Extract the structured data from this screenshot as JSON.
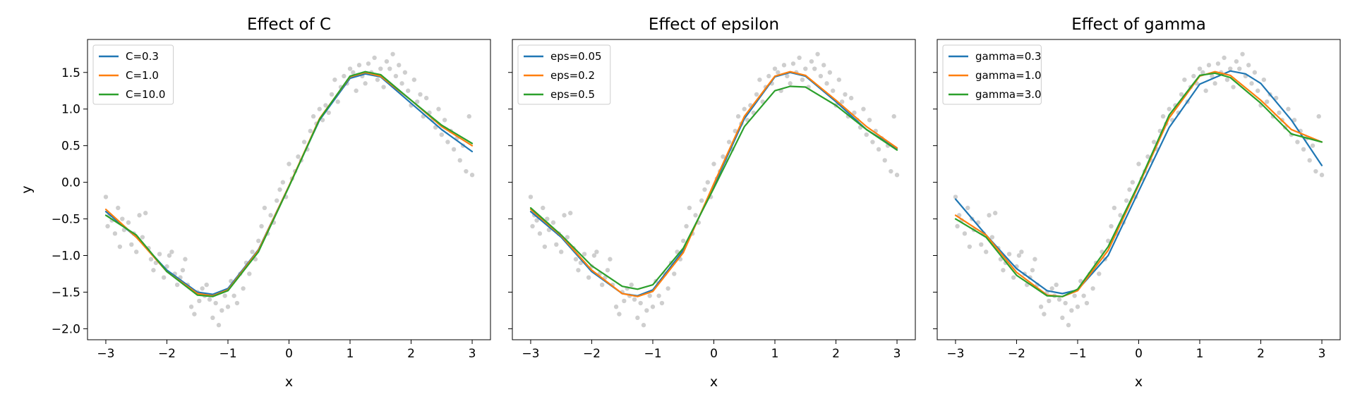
{
  "chart_data": [
    {
      "type": "scatter+line",
      "title": "Effect of C",
      "xlabel": "x",
      "ylabel": "y",
      "xlim": [
        -3.3,
        3.3
      ],
      "ylim": [
        -2.15,
        1.95
      ],
      "xticks": [
        -3,
        -2,
        -1,
        0,
        1,
        2,
        3
      ],
      "xtick_labels": [
        "−3",
        "−2",
        "−1",
        "0",
        "1",
        "2",
        "3"
      ],
      "yticks": [
        -2.0,
        -1.5,
        -1.0,
        -0.5,
        0.0,
        0.5,
        1.0,
        1.5
      ],
      "ytick_labels": [
        "−2.0",
        "−1.5",
        "−1.0",
        "−0.5",
        "0.0",
        "0.5",
        "1.0",
        "1.5"
      ],
      "legend_position": "upper-left",
      "series": [
        {
          "name": "C=0.3",
          "color": "#1f77b4",
          "x": [
            -3.0,
            -2.5,
            -2.0,
            -1.5,
            -1.25,
            -1.0,
            -0.5,
            0.0,
            0.5,
            1.0,
            1.25,
            1.5,
            2.0,
            2.5,
            3.0
          ],
          "y": [
            -0.4,
            -0.75,
            -1.2,
            -1.5,
            -1.53,
            -1.45,
            -0.92,
            -0.05,
            0.85,
            1.42,
            1.48,
            1.44,
            1.08,
            0.72,
            0.42
          ]
        },
        {
          "name": "C=1.0",
          "color": "#ff7f0e",
          "x": [
            -3.0,
            -2.5,
            -2.0,
            -1.5,
            -1.25,
            -1.0,
            -0.5,
            0.0,
            0.5,
            1.0,
            1.25,
            1.5,
            2.0,
            2.5,
            3.0
          ],
          "y": [
            -0.37,
            -0.75,
            -1.22,
            -1.52,
            -1.55,
            -1.47,
            -0.93,
            -0.05,
            0.87,
            1.44,
            1.5,
            1.45,
            1.12,
            0.76,
            0.5
          ]
        },
        {
          "name": "C=10.0",
          "color": "#2ca02c",
          "x": [
            -3.0,
            -2.5,
            -2.0,
            -1.5,
            -1.25,
            -1.0,
            -0.5,
            0.0,
            0.5,
            1.0,
            1.25,
            1.5,
            2.0,
            2.5,
            3.0
          ],
          "y": [
            -0.45,
            -0.72,
            -1.22,
            -1.54,
            -1.56,
            -1.48,
            -0.95,
            -0.06,
            0.86,
            1.45,
            1.51,
            1.47,
            1.12,
            0.78,
            0.53
          ]
        }
      ]
    },
    {
      "type": "scatter+line",
      "title": "Effect of epsilon",
      "xlabel": "x",
      "ylabel": "",
      "xlim": [
        -3.3,
        3.3
      ],
      "ylim": [
        -2.15,
        1.95
      ],
      "xticks": [
        -3,
        -2,
        -1,
        0,
        1,
        2,
        3
      ],
      "xtick_labels": [
        "−3",
        "−2",
        "−1",
        "0",
        "1",
        "2",
        "3"
      ],
      "legend_position": "upper-left",
      "series": [
        {
          "name": "eps=0.05",
          "color": "#1f77b4",
          "x": [
            -3.0,
            -2.5,
            -2.0,
            -1.5,
            -1.25,
            -1.0,
            -0.5,
            0.0,
            0.5,
            1.0,
            1.25,
            1.5,
            2.0,
            2.5,
            3.0
          ],
          "y": [
            -0.4,
            -0.75,
            -1.22,
            -1.52,
            -1.55,
            -1.47,
            -0.93,
            -0.05,
            0.87,
            1.44,
            1.5,
            1.45,
            1.1,
            0.72,
            0.46
          ]
        },
        {
          "name": "eps=0.2",
          "color": "#ff7f0e",
          "x": [
            -3.0,
            -2.5,
            -2.0,
            -1.5,
            -1.25,
            -1.0,
            -0.5,
            0.0,
            0.5,
            1.0,
            1.25,
            1.5,
            2.0,
            2.5,
            3.0
          ],
          "y": [
            -0.37,
            -0.73,
            -1.2,
            -1.52,
            -1.56,
            -1.49,
            -0.96,
            -0.02,
            0.9,
            1.45,
            1.51,
            1.46,
            1.12,
            0.76,
            0.47
          ]
        },
        {
          "name": "eps=0.5",
          "color": "#2ca02c",
          "x": [
            -3.0,
            -2.5,
            -2.0,
            -1.5,
            -1.25,
            -1.0,
            -0.5,
            0.0,
            0.5,
            1.0,
            1.25,
            1.5,
            2.0,
            2.5,
            3.0
          ],
          "y": [
            -0.35,
            -0.72,
            -1.14,
            -1.42,
            -1.46,
            -1.4,
            -0.9,
            -0.08,
            0.76,
            1.25,
            1.31,
            1.3,
            1.05,
            0.72,
            0.44
          ]
        }
      ]
    },
    {
      "type": "scatter+line",
      "title": "Effect of gamma",
      "xlabel": "x",
      "ylabel": "",
      "xlim": [
        -3.3,
        3.3
      ],
      "ylim": [
        -2.15,
        1.95
      ],
      "xticks": [
        -3,
        -2,
        -1,
        0,
        1,
        2,
        3
      ],
      "xtick_labels": [
        "−3",
        "−2",
        "−1",
        "0",
        "1",
        "2",
        "3"
      ],
      "legend_position": "upper-left",
      "series": [
        {
          "name": "gamma=0.3",
          "color": "#1f77b4",
          "x": [
            -3.0,
            -2.5,
            -2.0,
            -1.5,
            -1.25,
            -1.0,
            -0.5,
            0.0,
            0.5,
            1.0,
            1.5,
            1.75,
            2.0,
            2.5,
            3.0
          ],
          "y": [
            -0.23,
            -0.72,
            -1.18,
            -1.48,
            -1.52,
            -1.47,
            -1.0,
            -0.12,
            0.75,
            1.34,
            1.52,
            1.48,
            1.35,
            0.85,
            0.23
          ]
        },
        {
          "name": "gamma=1.0",
          "color": "#ff7f0e",
          "x": [
            -3.0,
            -2.5,
            -2.0,
            -1.5,
            -1.25,
            -1.0,
            -0.5,
            0.0,
            0.5,
            1.0,
            1.25,
            1.5,
            2.0,
            2.5,
            3.0
          ],
          "y": [
            -0.45,
            -0.72,
            -1.23,
            -1.54,
            -1.56,
            -1.48,
            -0.93,
            -0.04,
            0.88,
            1.45,
            1.51,
            1.46,
            1.12,
            0.72,
            0.55
          ]
        },
        {
          "name": "gamma=3.0",
          "color": "#2ca02c",
          "x": [
            -3.0,
            -2.5,
            -2.0,
            -1.5,
            -1.25,
            -1.0,
            -0.5,
            0.0,
            0.5,
            1.0,
            1.25,
            1.5,
            2.0,
            2.5,
            3.0
          ],
          "y": [
            -0.5,
            -0.75,
            -1.27,
            -1.55,
            -1.56,
            -1.46,
            -0.88,
            -0.02,
            0.92,
            1.46,
            1.49,
            1.43,
            1.08,
            0.66,
            0.55
          ]
        }
      ]
    }
  ],
  "scatter": {
    "color": "#7f7f7f",
    "x": [
      -3.0,
      -2.97,
      -2.94,
      -2.9,
      -2.85,
      -2.8,
      -2.77,
      -2.73,
      -2.7,
      -2.63,
      -2.58,
      -2.54,
      -2.5,
      -2.45,
      -2.4,
      -2.35,
      -2.3,
      -2.26,
      -2.22,
      -2.18,
      -2.12,
      -2.05,
      -2.0,
      -1.96,
      -1.92,
      -1.87,
      -1.83,
      -1.78,
      -1.74,
      -1.7,
      -1.66,
      -1.6,
      -1.55,
      -1.5,
      -1.47,
      -1.42,
      -1.38,
      -1.35,
      -1.3,
      -1.25,
      -1.2,
      -1.15,
      -1.1,
      -1.05,
      -1.0,
      -0.95,
      -0.9,
      -0.85,
      -0.8,
      -0.75,
      -0.7,
      -0.65,
      -0.6,
      -0.55,
      -0.5,
      -0.45,
      -0.4,
      -0.35,
      -0.3,
      -0.25,
      -0.2,
      -0.15,
      -0.1,
      -0.05,
      0.0,
      0.05,
      0.1,
      0.15,
      0.2,
      0.25,
      0.3,
      0.35,
      0.4,
      0.45,
      0.5,
      0.55,
      0.6,
      0.65,
      0.7,
      0.75,
      0.8,
      0.85,
      0.9,
      0.95,
      1.0,
      1.05,
      1.1,
      1.15,
      1.2,
      1.25,
      1.3,
      1.35,
      1.4,
      1.45,
      1.5,
      1.55,
      1.6,
      1.65,
      1.7,
      1.75,
      1.8,
      1.85,
      1.9,
      1.95,
      2.0,
      2.05,
      2.1,
      2.15,
      2.2,
      2.25,
      2.3,
      2.35,
      2.4,
      2.45,
      2.5,
      2.55,
      2.6,
      2.65,
      2.7,
      2.75,
      2.8,
      2.85,
      2.9,
      2.95,
      3.0
    ],
    "y": [
      -0.2,
      -0.6,
      -0.45,
      -0.52,
      -0.7,
      -0.35,
      -0.88,
      -0.5,
      -0.65,
      -0.55,
      -0.85,
      -0.7,
      -0.95,
      -0.45,
      -0.75,
      -0.42,
      -0.9,
      -1.05,
      -1.2,
      -1.1,
      -0.98,
      -1.3,
      -1.15,
      -1.0,
      -0.95,
      -1.25,
      -1.4,
      -1.3,
      -1.2,
      -1.05,
      -1.4,
      -1.7,
      -1.8,
      -1.5,
      -1.62,
      -1.45,
      -1.55,
      -1.4,
      -1.6,
      -1.85,
      -1.65,
      -1.95,
      -1.75,
      -1.55,
      -1.7,
      -1.35,
      -1.55,
      -1.65,
      -1.25,
      -1.45,
      -1.1,
      -1.25,
      -0.95,
      -1.05,
      -0.8,
      -0.6,
      -0.35,
      -0.7,
      -0.45,
      -0.55,
      -0.25,
      -0.1,
      0.0,
      -0.2,
      0.25,
      0.05,
      0.15,
      0.35,
      0.3,
      0.55,
      0.45,
      0.7,
      0.9,
      0.8,
      1.0,
      0.85,
      1.05,
      0.95,
      1.2,
      1.4,
      1.1,
      1.3,
      1.45,
      1.35,
      1.55,
      1.5,
      1.25,
      1.6,
      1.45,
      1.35,
      1.62,
      1.5,
      1.7,
      1.4,
      1.55,
      1.3,
      1.65,
      1.55,
      1.75,
      1.45,
      1.6,
      1.35,
      1.5,
      1.25,
      1.05,
      1.4,
      1.1,
      1.2,
      0.9,
      1.15,
      0.95,
      0.85,
      0.75,
      1.0,
      0.65,
      0.85,
      0.55,
      0.7,
      0.45,
      0.6,
      0.3,
      0.5,
      0.15,
      0.9,
      0.1
    ]
  }
}
